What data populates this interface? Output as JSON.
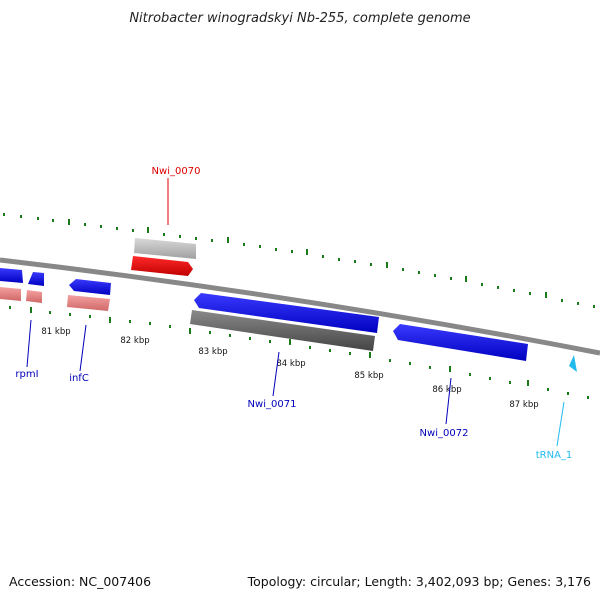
{
  "title": "Nitrobacter winogradskyi Nb-255, complete genome",
  "footer": {
    "accession": "Accession: NC_007406",
    "summary": "Topology: circular; Length: 3,402,093 bp; Genes: 3,176"
  },
  "colors": {
    "backbone": "#888888",
    "tick": "#1a7a1a",
    "forward_cds": "#0000ee",
    "reverse_cds": "#0000ee",
    "rrna_like": "#e88080",
    "highlight": "#ee0000",
    "gray_feature": "#666666",
    "trna": "#22bbee"
  },
  "scale": {
    "unit": "kbp",
    "labels": [
      "81 kbp",
      "82 kbp",
      "83 kbp",
      "84 kbp",
      "85 kbp",
      "86 kbp",
      "87 kbp"
    ]
  },
  "genes": [
    {
      "name": "Nwi_0070",
      "color": "#dd0000"
    },
    {
      "name": "rpmI",
      "color": "#0000bb"
    },
    {
      "name": "infC",
      "color": "#0000bb"
    },
    {
      "name": "Nwi_0071",
      "color": "#0000bb"
    },
    {
      "name": "Nwi_0072",
      "color": "#0000bb"
    },
    {
      "name": "tRNA_1",
      "color": "#22bbee"
    }
  ]
}
